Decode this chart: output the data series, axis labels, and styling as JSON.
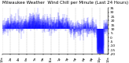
{
  "title": "Milwaukee Weather  Wind Chill per Minute (Last 24 Hours)",
  "title_fontsize": 4.0,
  "bg_color": "#ffffff",
  "plot_bg_color": "#ffffff",
  "line_color": "#0000ff",
  "grid_color": "#b0b0b0",
  "num_points": 1440,
  "y_min": -20,
  "y_max": 35,
  "yticks": [
    -20,
    -15,
    -10,
    -5,
    0,
    5,
    10,
    15,
    20,
    25,
    30,
    35
  ],
  "x_label_count": 13,
  "ylabel_fontsize": 3.2,
  "xlabel_fontsize": 3.0,
  "baseline": 10
}
